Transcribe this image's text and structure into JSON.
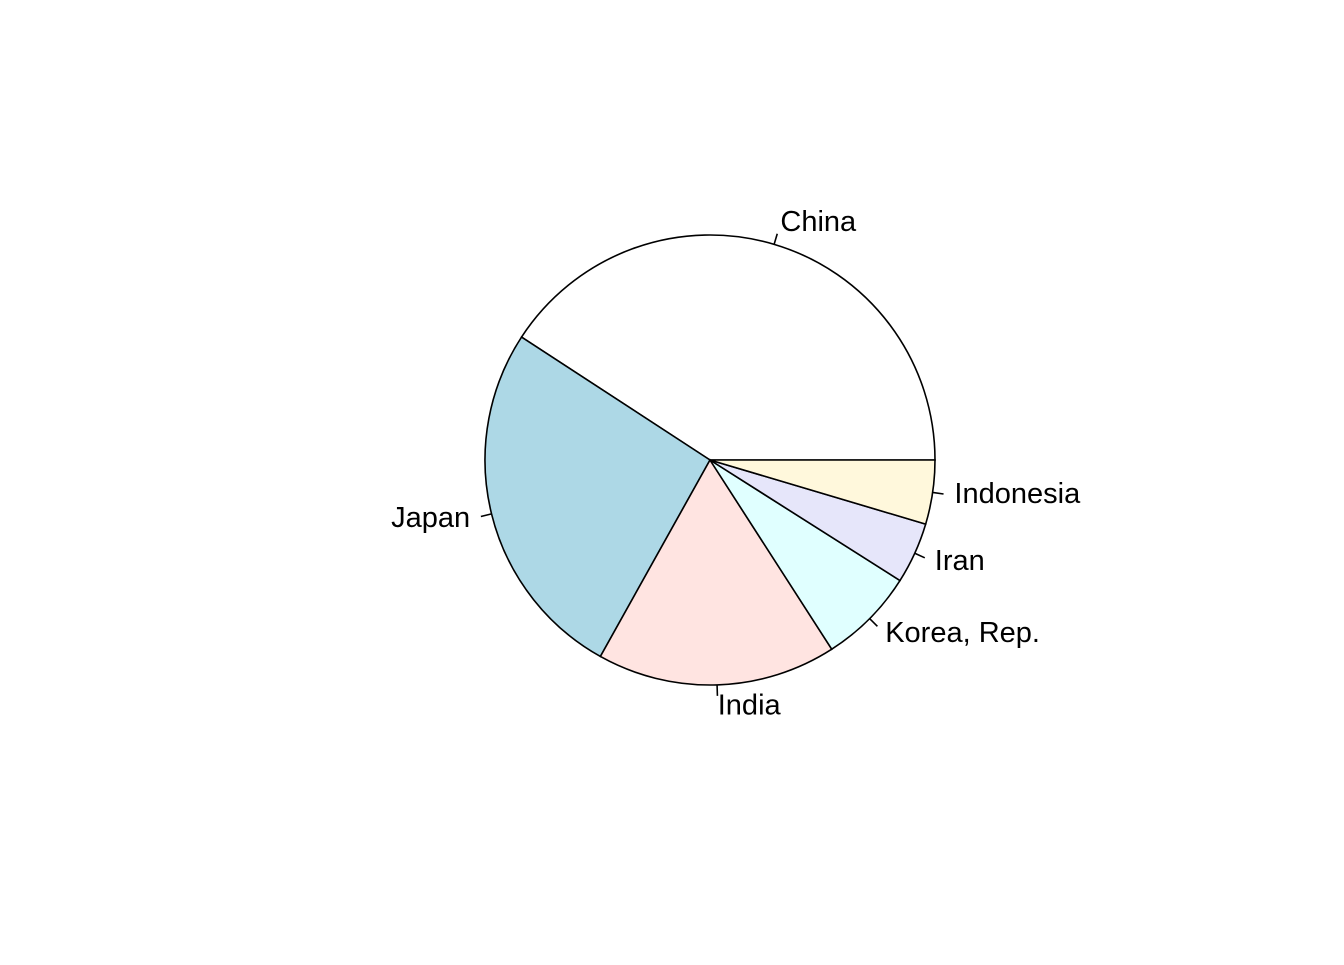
{
  "chart_data": {
    "type": "pie",
    "title": "",
    "start_angle": "0 degrees (3 o'clock), counter-clockwise",
    "categories": [
      "China",
      "Japan",
      "India",
      "Korea, Rep.",
      "Iran",
      "Indonesia"
    ],
    "values": [
      40.8,
      26.1,
      17.2,
      6.9,
      4.4,
      4.6
    ],
    "colors": [
      "#ffffff",
      "#add8e6",
      "#ffe4e1",
      "#e0ffff",
      "#e6e6fa",
      "#fff8dc"
    ]
  }
}
